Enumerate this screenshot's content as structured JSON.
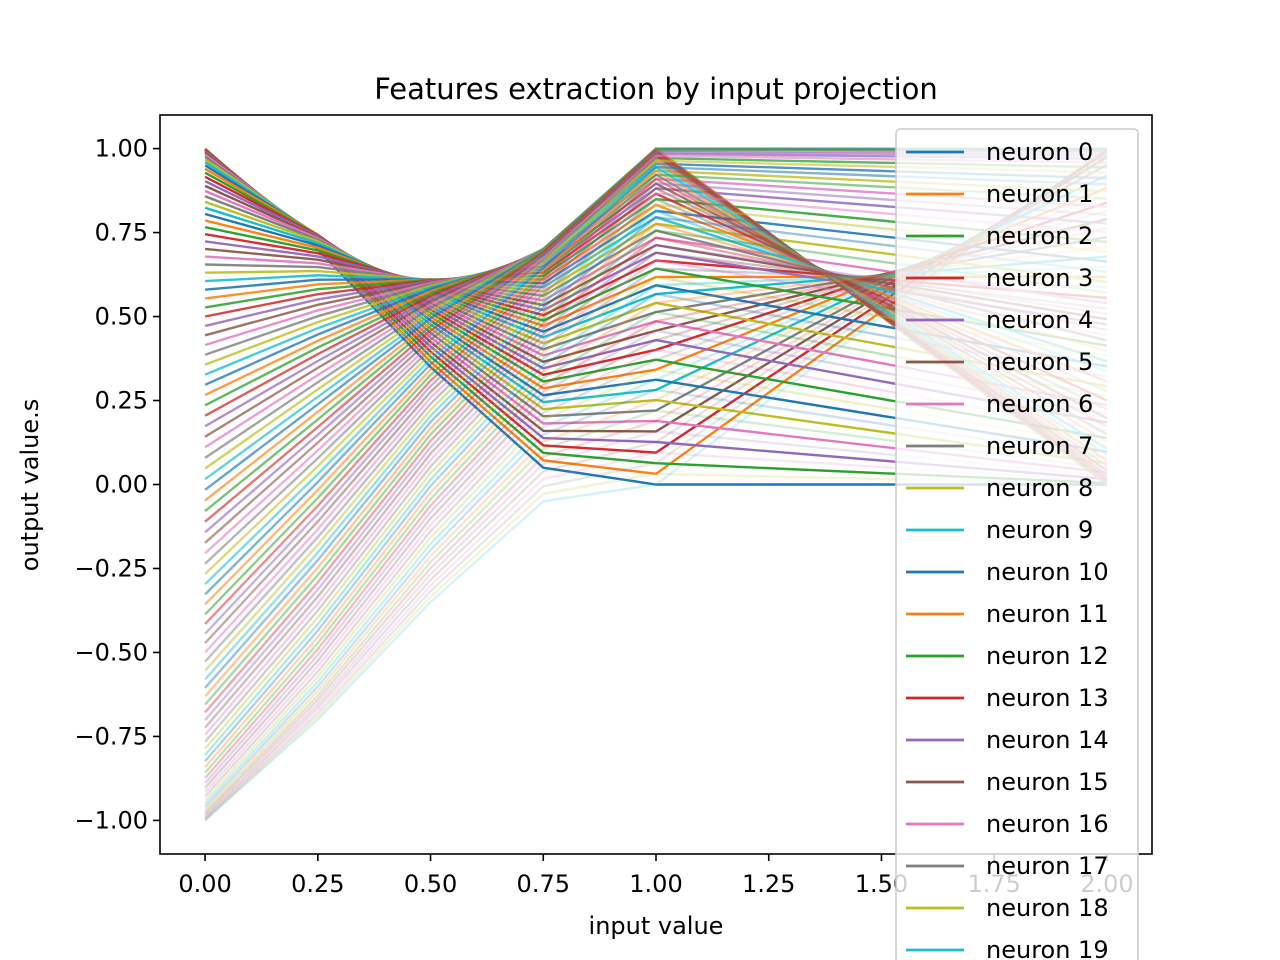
{
  "chart_data": {
    "type": "line",
    "title": "Features extraction by input projection",
    "xlabel": "input value",
    "ylabel": "output value.s",
    "xlim": [
      -0.1,
      2.1
    ],
    "ylim": [
      -1.1,
      1.1
    ],
    "x": [
      0,
      0.25,
      0.5,
      0.75,
      1,
      2
    ],
    "xticks": [
      0,
      0.25,
      0.5,
      0.75,
      1,
      1.25,
      1.5,
      1.75,
      2
    ],
    "xtick_labels": [
      "0.00",
      "0.25",
      "0.50",
      "0.75",
      "1.00",
      "1.25",
      "1.50",
      "1.75",
      "2.00"
    ],
    "yticks": [
      1,
      0.75,
      0.5,
      0.25,
      0,
      -0.25,
      -0.5,
      -0.75,
      -1
    ],
    "ytick_labels": [
      "1.00",
      "0.75",
      "0.50",
      "0.25",
      "0.00",
      "−0.25",
      "−0.50",
      "−0.75",
      "−1.00"
    ],
    "grid": false,
    "legend_position": "top-right",
    "palette": [
      "#1f77b4",
      "#ff7f0e",
      "#2ca02c",
      "#d62728",
      "#9467bd",
      "#8c564b",
      "#e377c2",
      "#7f7f7f",
      "#bcbd22",
      "#17becf"
    ],
    "legend_entries": [
      "neuron 0",
      "neuron 1",
      "neuron 2",
      "neuron 3",
      "neuron 4",
      "neuron 5",
      "neuron 6",
      "neuron 7",
      "neuron 8",
      "neuron 9",
      "neuron 10",
      "neuron 11",
      "neuron 12",
      "neuron 13",
      "neuron 14",
      "neuron 15",
      "neuron 16",
      "neuron 17",
      "neuron 18",
      "neuron 19"
    ],
    "series_count": 100,
    "series_note": "Each series i is a line through x=[0,0.25,0.5,0.75,1,2] with values sin-like projections; later series (>=20) are drawn with fading alpha."
  }
}
